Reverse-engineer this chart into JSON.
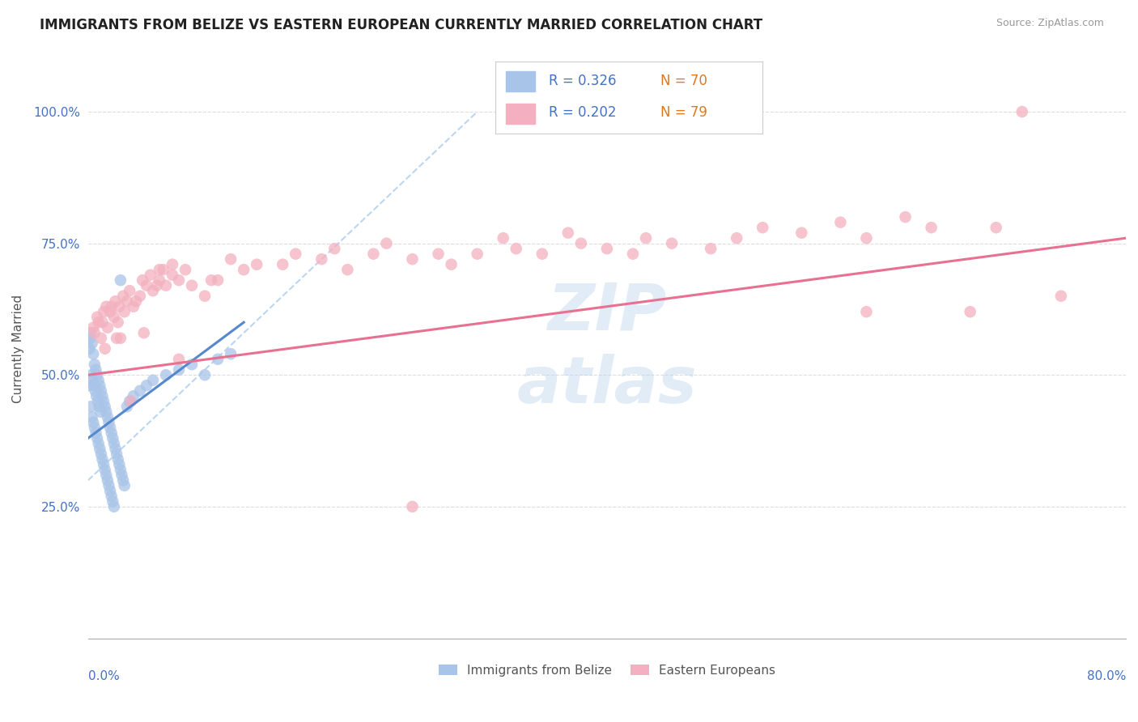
{
  "title": "IMMIGRANTS FROM BELIZE VS EASTERN EUROPEAN CURRENTLY MARRIED CORRELATION CHART",
  "source": "Source: ZipAtlas.com",
  "ylabel": "Currently Married",
  "xlim": [
    0.0,
    80.0
  ],
  "ylim": [
    0.0,
    110.0
  ],
  "yticks": [
    25.0,
    50.0,
    75.0,
    100.0
  ],
  "ytick_labels": [
    "25.0%",
    "50.0%",
    "75.0%",
    "100.0%"
  ],
  "xtick_left": "0.0%",
  "xtick_right": "80.0%",
  "color_belize": "#a8c4e8",
  "color_eastern": "#f4b0c0",
  "color_belize_line": "#5588cc",
  "color_eastern_line": "#e87090",
  "color_ref_line": "#aaccee",
  "color_axis_val": "#4472c4",
  "color_legend_r": "#4472c4",
  "color_legend_n": "#e07820",
  "belize_x": [
    0.1,
    0.1,
    0.2,
    0.2,
    0.3,
    0.3,
    0.4,
    0.4,
    0.5,
    0.5,
    0.6,
    0.6,
    0.7,
    0.7,
    0.8,
    0.8,
    0.9,
    0.9,
    1.0,
    1.0,
    1.1,
    1.1,
    1.2,
    1.2,
    1.3,
    1.3,
    1.4,
    1.4,
    1.5,
    1.5,
    1.6,
    1.6,
    1.7,
    1.7,
    1.8,
    1.8,
    1.9,
    1.9,
    2.0,
    2.0,
    2.1,
    2.2,
    2.3,
    2.4,
    2.5,
    2.6,
    2.7,
    2.8,
    3.0,
    3.2,
    3.5,
    4.0,
    4.5,
    5.0,
    6.0,
    7.0,
    8.0,
    9.0,
    10.0,
    11.0,
    0.15,
    0.25,
    0.35,
    0.45,
    0.55,
    0.65,
    0.75,
    0.85,
    0.95,
    2.5
  ],
  "belize_y": [
    55,
    48,
    58,
    44,
    56,
    42,
    54,
    41,
    52,
    40,
    51,
    39,
    50,
    38,
    49,
    37,
    48,
    36,
    47,
    35,
    46,
    34,
    45,
    33,
    44,
    32,
    43,
    31,
    42,
    30,
    41,
    29,
    40,
    28,
    39,
    27,
    38,
    26,
    37,
    25,
    36,
    35,
    34,
    33,
    32,
    31,
    30,
    29,
    44,
    45,
    46,
    47,
    48,
    49,
    50,
    51,
    52,
    50,
    53,
    54,
    57,
    50,
    49,
    48,
    47,
    46,
    45,
    44,
    43,
    68
  ],
  "eastern_x": [
    0.5,
    0.8,
    1.0,
    1.2,
    1.5,
    1.8,
    2.0,
    2.3,
    2.5,
    2.8,
    3.0,
    3.5,
    4.0,
    4.5,
    5.0,
    5.5,
    6.0,
    6.5,
    7.0,
    8.0,
    9.0,
    10.0,
    12.0,
    15.0,
    18.0,
    20.0,
    22.0,
    25.0,
    28.0,
    30.0,
    33.0,
    35.0,
    38.0,
    40.0,
    42.0,
    45.0,
    48.0,
    50.0,
    55.0,
    60.0,
    65.0,
    70.0,
    72.0,
    0.4,
    0.7,
    1.1,
    1.4,
    1.7,
    2.1,
    2.4,
    2.7,
    3.2,
    3.7,
    4.2,
    4.8,
    5.3,
    5.8,
    6.5,
    7.5,
    9.5,
    11.0,
    13.0,
    16.0,
    19.0,
    23.0,
    27.0,
    32.0,
    37.0,
    43.0,
    52.0,
    58.0,
    63.0,
    68.0,
    1.3,
    2.2,
    3.3,
    4.3,
    5.5,
    7.0,
    25.0,
    60.0,
    75.0
  ],
  "eastern_y": [
    58,
    60,
    57,
    62,
    59,
    63,
    61,
    60,
    57,
    62,
    64,
    63,
    65,
    67,
    66,
    68,
    67,
    69,
    68,
    67,
    65,
    68,
    70,
    71,
    72,
    70,
    73,
    72,
    71,
    73,
    74,
    73,
    75,
    74,
    73,
    75,
    74,
    76,
    77,
    76,
    78,
    78,
    100,
    59,
    61,
    60,
    63,
    62,
    64,
    63,
    65,
    66,
    64,
    68,
    69,
    67,
    70,
    71,
    70,
    68,
    72,
    71,
    73,
    74,
    75,
    73,
    76,
    77,
    76,
    78,
    79,
    80,
    62,
    55,
    57,
    45,
    58,
    70,
    53,
    25,
    62,
    65
  ],
  "belize_trend": [
    0.0,
    12.0,
    38.0,
    60.0
  ],
  "eastern_trend": [
    0.0,
    80.0,
    50.0,
    76.0
  ],
  "ref_line": [
    0.0,
    30.0,
    30.0,
    100.0
  ]
}
